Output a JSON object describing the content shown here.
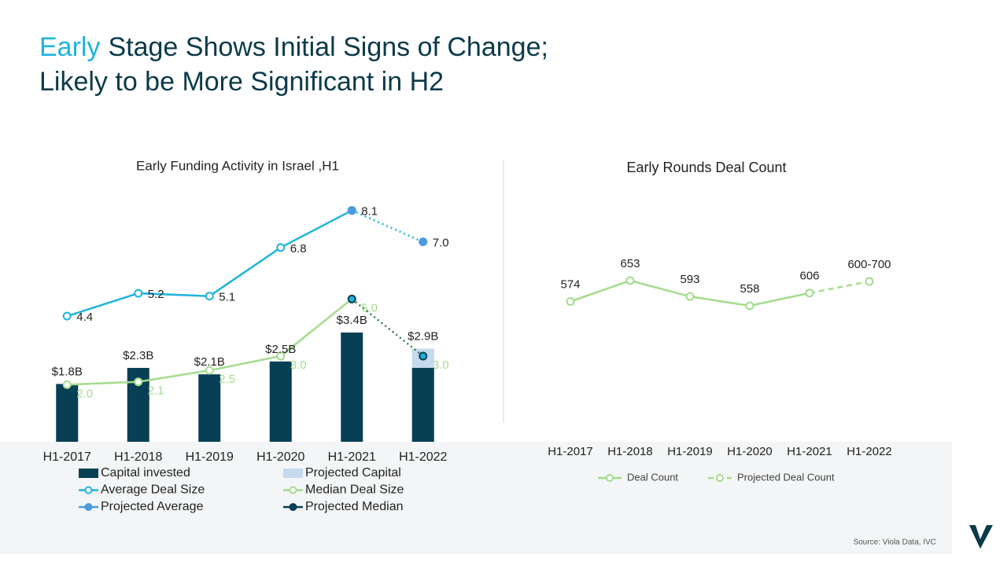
{
  "slide": {
    "title_highlight": "Early",
    "title_rest": "Stage Shows Initial Signs of Change;",
    "title_line2": "Likely to be More Significant in H2",
    "source": "Source: Viola Data, IVC"
  },
  "chart_data": [
    {
      "type": "combo",
      "title": "Early Funding Activity in Israel ,H1",
      "categories": [
        "H1-2017",
        "H1-2018",
        "H1-2019",
        "H1-2020",
        "H1-2021",
        "H1-2022"
      ],
      "ylim": [
        0,
        8
      ],
      "y2lim": [
        0,
        9
      ],
      "series": [
        {
          "name": "Projected Capital",
          "type": "bar",
          "color": "#c5d9ef",
          "values": [
            null,
            null,
            null,
            null,
            null,
            2.9
          ],
          "value_labels": [
            null,
            null,
            null,
            null,
            null,
            "$2.9B"
          ]
        },
        {
          "name": "Capital invested",
          "type": "bar",
          "color": "#073f55",
          "values": [
            1.8,
            2.3,
            2.1,
            2.5,
            3.4,
            2.3
          ],
          "value_labels": [
            "$1.8B",
            "$2.3B",
            "$2.1B",
            "$2.5B",
            "$3.4B",
            null
          ]
        },
        {
          "name": "Average Deal Size",
          "type": "line",
          "axis": "y2",
          "color": "#1eb4dc",
          "marker": "hollow",
          "values": [
            4.4,
            5.2,
            5.1,
            6.8,
            8.1,
            null
          ]
        },
        {
          "name": "Projected Average",
          "type": "line",
          "axis": "y2",
          "color": "#1eb4dc",
          "marker_color": "#4a9be0",
          "style": "dotted",
          "marker": "filled",
          "values": [
            null,
            null,
            null,
            null,
            8.1,
            7
          ],
          "value_labels": [
            null,
            null,
            null,
            null,
            null,
            "7.0"
          ]
        },
        {
          "name": "Median Deal Size",
          "type": "line",
          "axis": "y2",
          "color": "#a3dc8c",
          "marker": "hollow",
          "values": [
            2.0,
            2.1,
            2.5,
            3.0,
            5.0,
            null
          ],
          "value_labels": [
            "2.0",
            "2.1",
            "2.5",
            "3.0",
            "5.0",
            null
          ]
        },
        {
          "name": "Projected Median",
          "type": "line",
          "axis": "y2",
          "color": "#2f7a4a",
          "marker_color": "#073f55",
          "style": "dotted",
          "marker": "filled",
          "values": [
            null,
            null,
            null,
            null,
            5.0,
            3.0
          ],
          "value_labels": [
            null,
            null,
            null,
            null,
            null,
            "3.0"
          ]
        }
      ]
    },
    {
      "type": "line",
      "title": "Early Rounds Deal Count",
      "categories": [
        "H1-2017",
        "H1-2018",
        "H1-2019",
        "H1-2020",
        "H1-2021",
        "H1-2022"
      ],
      "ylim": [
        0,
        1000
      ],
      "series": [
        {
          "name": "Deal Count",
          "color": "#a3dc8c",
          "marker": "hollow",
          "values": [
            574,
            653,
            593,
            558,
            606,
            null
          ]
        },
        {
          "name": "Projected Deal Count",
          "color": "#a3dc8c",
          "marker": "hollow",
          "style": "dashed",
          "values": [
            null,
            null,
            null,
            null,
            606,
            650
          ],
          "value_labels": [
            null,
            null,
            null,
            null,
            null,
            "600-700"
          ]
        }
      ]
    }
  ]
}
